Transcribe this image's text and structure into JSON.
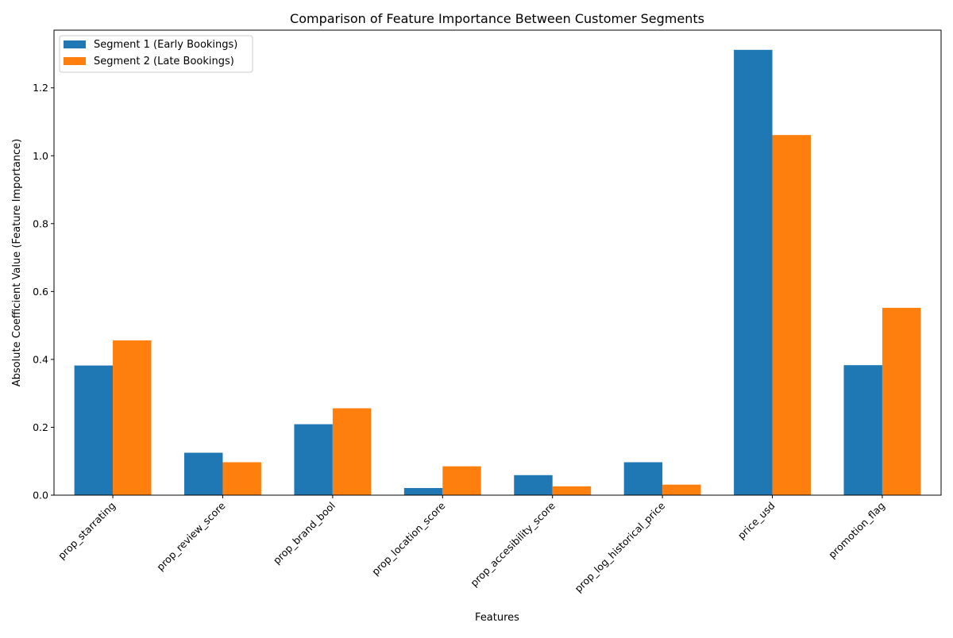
{
  "chart_data": {
    "type": "bar",
    "title": "Comparison of Feature Importance Between Customer Segments",
    "xlabel": "Features",
    "ylabel": "Absolute Coefficient Value (Feature Importance)",
    "categories": [
      "prop_starrating",
      "prop_review_score",
      "prop_brand_bool",
      "prop_location_score",
      "prop_accesibility_score",
      "prop_log_historical_price",
      "price_usd",
      "promotion_flag"
    ],
    "series": [
      {
        "name": "Segment 1 (Early Bookings)",
        "color": "#1f77b4",
        "values": [
          0.382,
          0.125,
          0.209,
          0.021,
          0.059,
          0.097,
          1.312,
          0.383
        ]
      },
      {
        "name": "Segment 2 (Late Bookings)",
        "color": "#ff7f0e",
        "values": [
          0.456,
          0.097,
          0.256,
          0.085,
          0.026,
          0.031,
          1.061,
          0.552
        ]
      }
    ],
    "ylim": [
      0,
      1.37
    ],
    "yticks": [
      0.0,
      0.2,
      0.4,
      0.6,
      0.8,
      1.0,
      1.2
    ],
    "ytick_labels": [
      "0.0",
      "0.2",
      "0.4",
      "0.6",
      "0.8",
      "1.0",
      "1.2"
    ],
    "legend_position": "top-left",
    "grid": false
  }
}
